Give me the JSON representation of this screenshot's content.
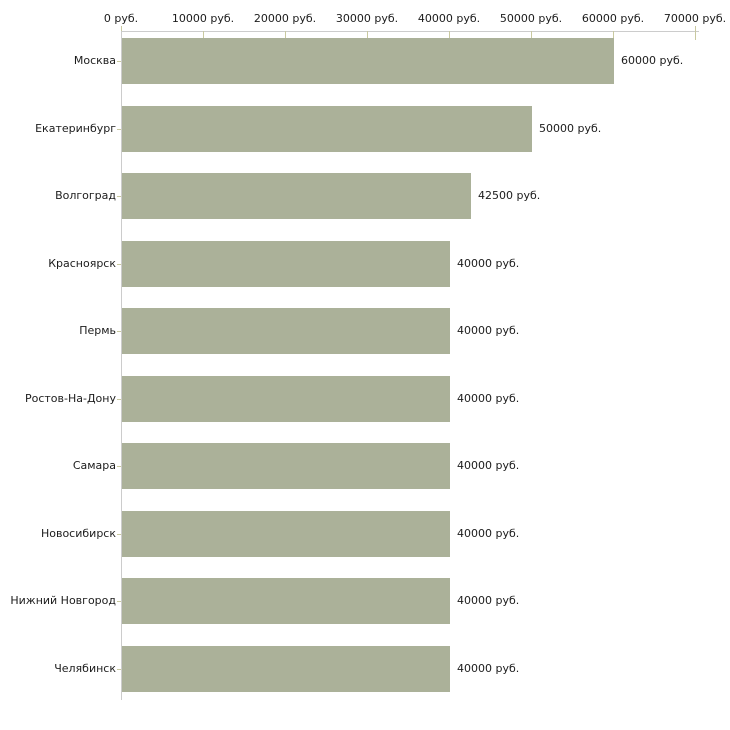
{
  "chart_data": {
    "type": "bar",
    "orientation": "horizontal",
    "title": "",
    "xlabel": "",
    "ylabel": "",
    "xlim": [
      0,
      70000
    ],
    "x_tick_interval": 10000,
    "x_tick_labels": [
      "0 руб.",
      "10000 руб.",
      "20000 руб.",
      "30000 руб.",
      "40000 руб.",
      "50000 руб.",
      "60000 руб.",
      "70000 руб."
    ],
    "categories": [
      "Москва",
      "Екатеринбург",
      "Волгоград",
      "Красноярск",
      "Пермь",
      "Ростов-На-Дону",
      "Самара",
      "Новосибирск",
      "Нижний Новгород",
      "Челябинск"
    ],
    "values": [
      60000,
      50000,
      42500,
      40000,
      40000,
      40000,
      40000,
      40000,
      40000,
      40000
    ],
    "bar_labels": [
      "60000 руб.",
      "50000 руб.",
      "42500 руб.",
      "40000 руб.",
      "40000 руб.",
      "40000 руб.",
      "40000 руб.",
      "40000 руб.",
      "40000 руб.",
      "40000 руб."
    ],
    "grid": false,
    "legend": "none",
    "colors": {
      "bar": "#abb199",
      "axis_line": "#cccccc",
      "tick": "#c9c9a0",
      "text": "#1c1c1c",
      "background": "#ffffff"
    }
  }
}
